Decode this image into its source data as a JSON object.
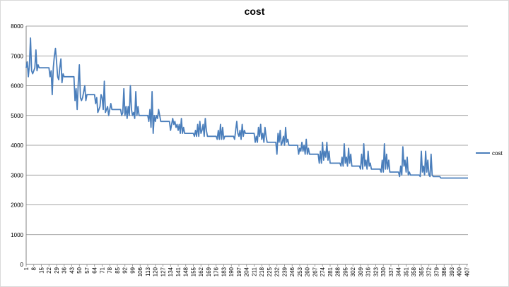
{
  "chart_data": {
    "type": "line",
    "title": "cost",
    "xlabel": "",
    "ylabel": "",
    "ylim": [
      0,
      8000
    ],
    "yticks": [
      0,
      1000,
      2000,
      3000,
      4000,
      5000,
      6000,
      7000,
      8000
    ],
    "x_tick_labels": [
      "1",
      "8",
      "15",
      "22",
      "29",
      "36",
      "43",
      "50",
      "57",
      "64",
      "71",
      "78",
      "85",
      "92",
      "99",
      "106",
      "113",
      "120",
      "127",
      "134",
      "141",
      "148",
      "155",
      "162",
      "169",
      "176",
      "183",
      "190",
      "197",
      "204",
      "211",
      "218",
      "225",
      "232",
      "239",
      "246",
      "253",
      "260",
      "267",
      "274",
      "281",
      "288",
      "295",
      "302",
      "309",
      "316",
      "323",
      "330",
      "337",
      "344",
      "351",
      "358",
      "365",
      "372",
      "379",
      "386",
      "393",
      "400",
      "407"
    ],
    "x_range": [
      1,
      408
    ],
    "grid": "horizontal",
    "legend": {
      "placement": "right",
      "entries": [
        "cost"
      ]
    },
    "colors": {
      "series": "#4a7ebb",
      "grid": "#868686",
      "axis": "#868686"
    },
    "series": [
      {
        "name": "cost",
        "points": [
          [
            1,
            6600
          ],
          [
            2,
            6800
          ],
          [
            3,
            6300
          ],
          [
            4,
            6700
          ],
          [
            5,
            7600
          ],
          [
            6,
            6500
          ],
          [
            7,
            6400
          ],
          [
            8,
            6500
          ],
          [
            9,
            6600
          ],
          [
            10,
            7200
          ],
          [
            11,
            6500
          ],
          [
            12,
            6700
          ],
          [
            13,
            6600
          ],
          [
            14,
            6600
          ],
          [
            22,
            6600
          ],
          [
            23,
            6300
          ],
          [
            24,
            6500
          ],
          [
            25,
            5700
          ],
          [
            26,
            6600
          ],
          [
            27,
            7000
          ],
          [
            28,
            7250
          ],
          [
            29,
            6800
          ],
          [
            30,
            6300
          ],
          [
            31,
            6200
          ],
          [
            32,
            6600
          ],
          [
            33,
            6900
          ],
          [
            34,
            6100
          ],
          [
            35,
            6400
          ],
          [
            36,
            6300
          ],
          [
            45,
            6300
          ],
          [
            46,
            5500
          ],
          [
            47,
            5900
          ],
          [
            48,
            5200
          ],
          [
            49,
            6100
          ],
          [
            50,
            6700
          ],
          [
            51,
            5600
          ],
          [
            52,
            5500
          ],
          [
            53,
            5600
          ],
          [
            54,
            5800
          ],
          [
            55,
            6000
          ],
          [
            56,
            5500
          ],
          [
            57,
            5700
          ],
          [
            64,
            5700
          ],
          [
            65,
            5400
          ],
          [
            66,
            5600
          ],
          [
            67,
            5100
          ],
          [
            68,
            5200
          ],
          [
            69,
            5300
          ],
          [
            70,
            5700
          ],
          [
            71,
            5600
          ],
          [
            72,
            5200
          ],
          [
            73,
            6150
          ],
          [
            74,
            5100
          ],
          [
            75,
            5200
          ],
          [
            76,
            5300
          ],
          [
            77,
            5000
          ],
          [
            78,
            5200
          ],
          [
            79,
            5400
          ],
          [
            80,
            5200
          ],
          [
            88,
            5200
          ],
          [
            89,
            5000
          ],
          [
            90,
            5100
          ],
          [
            91,
            5900
          ],
          [
            92,
            5000
          ],
          [
            93,
            5300
          ],
          [
            94,
            4900
          ],
          [
            95,
            5300
          ],
          [
            96,
            5000
          ],
          [
            97,
            6000
          ],
          [
            98,
            5200
          ],
          [
            99,
            5000
          ],
          [
            100,
            5100
          ],
          [
            101,
            4900
          ],
          [
            102,
            5800
          ],
          [
            103,
            5000
          ],
          [
            104,
            5300
          ],
          [
            105,
            5000
          ],
          [
            113,
            5000
          ],
          [
            114,
            4800
          ],
          [
            115,
            5200
          ],
          [
            116,
            4600
          ],
          [
            117,
            5800
          ],
          [
            118,
            4400
          ],
          [
            119,
            5000
          ],
          [
            120,
            4800
          ],
          [
            121,
            5000
          ],
          [
            122,
            4900
          ],
          [
            123,
            5200
          ],
          [
            124,
            5000
          ],
          [
            125,
            4800
          ],
          [
            126,
            4800
          ],
          [
            133,
            4800
          ],
          [
            134,
            4500
          ],
          [
            135,
            4700
          ],
          [
            136,
            4900
          ],
          [
            137,
            4700
          ],
          [
            138,
            4800
          ],
          [
            139,
            4600
          ],
          [
            140,
            4700
          ],
          [
            141,
            4500
          ],
          [
            142,
            4700
          ],
          [
            143,
            4400
          ],
          [
            144,
            4900
          ],
          [
            145,
            4400
          ],
          [
            146,
            4600
          ],
          [
            147,
            4400
          ],
          [
            155,
            4400
          ],
          [
            156,
            4300
          ],
          [
            157,
            4500
          ],
          [
            158,
            4300
          ],
          [
            159,
            4700
          ],
          [
            160,
            4300
          ],
          [
            161,
            4800
          ],
          [
            162,
            4400
          ],
          [
            163,
            4500
          ],
          [
            164,
            4700
          ],
          [
            165,
            4300
          ],
          [
            166,
            4900
          ],
          [
            167,
            4500
          ],
          [
            168,
            4300
          ],
          [
            169,
            4300
          ],
          [
            176,
            4300
          ],
          [
            177,
            4200
          ],
          [
            178,
            4500
          ],
          [
            179,
            4200
          ],
          [
            180,
            4700
          ],
          [
            181,
            4200
          ],
          [
            182,
            4600
          ],
          [
            183,
            4200
          ],
          [
            184,
            4300
          ],
          [
            192,
            4300
          ],
          [
            193,
            4200
          ],
          [
            194,
            4500
          ],
          [
            195,
            4800
          ],
          [
            196,
            4400
          ],
          [
            197,
            4300
          ],
          [
            198,
            4500
          ],
          [
            199,
            4200
          ],
          [
            200,
            4700
          ],
          [
            201,
            4300
          ],
          [
            202,
            4500
          ],
          [
            203,
            4400
          ],
          [
            211,
            4400
          ],
          [
            212,
            4100
          ],
          [
            213,
            4300
          ],
          [
            214,
            4100
          ],
          [
            215,
            4600
          ],
          [
            216,
            4300
          ],
          [
            217,
            4700
          ],
          [
            218,
            4200
          ],
          [
            219,
            4400
          ],
          [
            220,
            4100
          ],
          [
            221,
            4600
          ],
          [
            222,
            4300
          ],
          [
            223,
            4100
          ],
          [
            224,
            4100
          ],
          [
            231,
            4100
          ],
          [
            232,
            3700
          ],
          [
            233,
            4400
          ],
          [
            234,
            4100
          ],
          [
            235,
            4500
          ],
          [
            236,
            4000
          ],
          [
            237,
            4100
          ],
          [
            238,
            4300
          ],
          [
            239,
            4000
          ],
          [
            240,
            4600
          ],
          [
            241,
            4100
          ],
          [
            242,
            4200
          ],
          [
            243,
            4000
          ],
          [
            251,
            4000
          ],
          [
            252,
            3700
          ],
          [
            253,
            3900
          ],
          [
            254,
            3800
          ],
          [
            255,
            4100
          ],
          [
            256,
            3800
          ],
          [
            257,
            4000
          ],
          [
            258,
            3700
          ],
          [
            259,
            4200
          ],
          [
            260,
            3700
          ],
          [
            261,
            3900
          ],
          [
            262,
            3700
          ],
          [
            270,
            3700
          ],
          [
            271,
            3400
          ],
          [
            272,
            3800
          ],
          [
            273,
            3400
          ],
          [
            274,
            4100
          ],
          [
            275,
            3500
          ],
          [
            276,
            3800
          ],
          [
            277,
            3600
          ],
          [
            278,
            4100
          ],
          [
            279,
            3500
          ],
          [
            280,
            3800
          ],
          [
            281,
            3400
          ],
          [
            282,
            3400
          ],
          [
            290,
            3400
          ],
          [
            291,
            3300
          ],
          [
            292,
            3600
          ],
          [
            293,
            3300
          ],
          [
            294,
            4050
          ],
          [
            295,
            3400
          ],
          [
            296,
            3600
          ],
          [
            297,
            3300
          ],
          [
            298,
            3900
          ],
          [
            299,
            3400
          ],
          [
            300,
            3700
          ],
          [
            301,
            3300
          ],
          [
            308,
            3300
          ],
          [
            309,
            3200
          ],
          [
            310,
            3700
          ],
          [
            311,
            3200
          ],
          [
            312,
            4050
          ],
          [
            313,
            3300
          ],
          [
            314,
            3500
          ],
          [
            315,
            3200
          ],
          [
            316,
            3800
          ],
          [
            317,
            3300
          ],
          [
            318,
            3400
          ],
          [
            319,
            3200
          ],
          [
            327,
            3200
          ],
          [
            328,
            3100
          ],
          [
            329,
            3500
          ],
          [
            330,
            3100
          ],
          [
            331,
            4050
          ],
          [
            332,
            3200
          ],
          [
            333,
            3700
          ],
          [
            334,
            3200
          ],
          [
            335,
            3500
          ],
          [
            336,
            3100
          ],
          [
            344,
            3100
          ],
          [
            345,
            2950
          ],
          [
            346,
            3300
          ],
          [
            347,
            3000
          ],
          [
            348,
            3950
          ],
          [
            349,
            3300
          ],
          [
            350,
            3500
          ],
          [
            351,
            3100
          ],
          [
            352,
            3600
          ],
          [
            353,
            3000
          ],
          [
            354,
            3100
          ],
          [
            355,
            3000
          ],
          [
            363,
            3000
          ],
          [
            364,
            2950
          ],
          [
            365,
            3800
          ],
          [
            366,
            3100
          ],
          [
            367,
            3300
          ],
          [
            368,
            3000
          ],
          [
            369,
            3800
          ],
          [
            370,
            3100
          ],
          [
            371,
            3500
          ],
          [
            372,
            3000
          ],
          [
            373,
            2950
          ],
          [
            374,
            3700
          ],
          [
            375,
            3000
          ],
          [
            376,
            2950
          ],
          [
            377,
            2950
          ],
          [
            382,
            2950
          ],
          [
            383,
            2900
          ],
          [
            408,
            2900
          ]
        ]
      }
    ]
  }
}
